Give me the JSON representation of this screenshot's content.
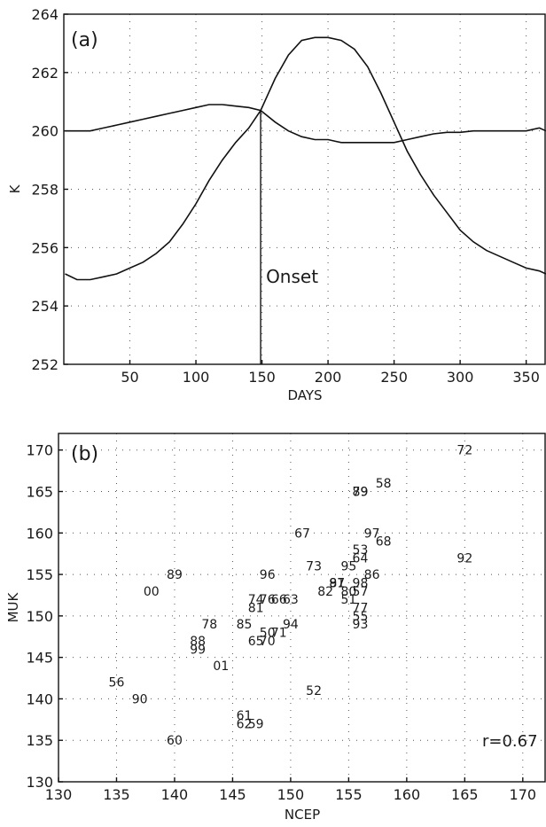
{
  "chart_data": [
    {
      "type": "line",
      "panel_label": "(a)",
      "xlabel": "DAYS",
      "ylabel": "K",
      "xlim": [
        0,
        365
      ],
      "ylim": [
        252,
        264
      ],
      "xticks": [
        50,
        100,
        150,
        200,
        250,
        300,
        350
      ],
      "yticks": [
        252,
        254,
        256,
        258,
        260,
        262,
        264
      ],
      "grid": true,
      "annotation": "Onset",
      "onset_day": 149,
      "series": [
        {
          "x": [
            1,
            10,
            20,
            30,
            40,
            50,
            60,
            70,
            80,
            90,
            100,
            110,
            120,
            130,
            140,
            149,
            155,
            160,
            170,
            180,
            190,
            200,
            210,
            220,
            230,
            240,
            250,
            260,
            270,
            280,
            290,
            300,
            310,
            320,
            330,
            340,
            350,
            360,
            365
          ],
          "values": [
            255.1,
            254.9,
            254.9,
            255.0,
            255.1,
            255.3,
            255.5,
            255.8,
            256.2,
            256.8,
            257.5,
            258.3,
            259.0,
            259.6,
            260.1,
            260.7,
            261.3,
            261.8,
            262.6,
            263.1,
            263.2,
            263.2,
            263.1,
            262.8,
            262.2,
            261.3,
            260.3,
            259.3,
            258.5,
            257.8,
            257.2,
            256.6,
            256.2,
            255.9,
            255.7,
            255.5,
            255.3,
            255.2,
            255.1
          ]
        },
        {
          "x": [
            1,
            10,
            20,
            30,
            40,
            50,
            60,
            70,
            80,
            90,
            100,
            110,
            120,
            130,
            140,
            149,
            160,
            170,
            180,
            190,
            200,
            210,
            220,
            230,
            240,
            250,
            260,
            270,
            280,
            290,
            300,
            310,
            320,
            330,
            340,
            350,
            360,
            365
          ],
          "values": [
            260.0,
            260.0,
            260.0,
            260.1,
            260.2,
            260.3,
            260.4,
            260.5,
            260.6,
            260.7,
            260.8,
            260.9,
            260.9,
            260.85,
            260.8,
            260.7,
            260.3,
            260.0,
            259.8,
            259.7,
            259.7,
            259.6,
            259.6,
            259.6,
            259.6,
            259.6,
            259.7,
            259.8,
            259.9,
            259.95,
            259.95,
            260.0,
            260.0,
            260.0,
            260.0,
            260.0,
            260.1,
            260.0
          ]
        }
      ]
    },
    {
      "type": "scatter",
      "panel_label": "(b)",
      "xlabel": "NCEP",
      "ylabel": "MUK",
      "xlim": [
        130,
        172
      ],
      "ylim": [
        130,
        172
      ],
      "xticks": [
        130,
        135,
        140,
        145,
        150,
        155,
        160,
        165,
        170
      ],
      "yticks": [
        130,
        135,
        140,
        145,
        150,
        155,
        160,
        165,
        170
      ],
      "grid": true,
      "annotation": "r=0.67",
      "points": [
        {
          "label": "72",
          "x": 165,
          "y": 170
        },
        {
          "label": "58",
          "x": 158,
          "y": 166
        },
        {
          "label": "79",
          "x": 156,
          "y": 165
        },
        {
          "label": "89",
          "x": 156,
          "y": 165
        },
        {
          "label": "97",
          "x": 157,
          "y": 160
        },
        {
          "label": "68",
          "x": 158,
          "y": 159
        },
        {
          "label": "67",
          "x": 151,
          "y": 160
        },
        {
          "label": "53",
          "x": 156,
          "y": 158
        },
        {
          "label": "64",
          "x": 156,
          "y": 157
        },
        {
          "label": "95",
          "x": 155,
          "y": 156
        },
        {
          "label": "92",
          "x": 165,
          "y": 157
        },
        {
          "label": "86",
          "x": 157,
          "y": 155
        },
        {
          "label": "89",
          "x": 140,
          "y": 155
        },
        {
          "label": "96",
          "x": 148,
          "y": 155
        },
        {
          "label": "73",
          "x": 152,
          "y": 156
        },
        {
          "label": "00",
          "x": 138,
          "y": 153
        },
        {
          "label": "87",
          "x": 154,
          "y": 154
        },
        {
          "label": "91",
          "x": 154,
          "y": 154
        },
        {
          "label": "98",
          "x": 156,
          "y": 154
        },
        {
          "label": "82",
          "x": 153,
          "y": 153
        },
        {
          "label": "80",
          "x": 155,
          "y": 153
        },
        {
          "label": "57",
          "x": 156,
          "y": 153
        },
        {
          "label": "51",
          "x": 155,
          "y": 152
        },
        {
          "label": "74",
          "x": 147,
          "y": 152
        },
        {
          "label": "76",
          "x": 148,
          "y": 152
        },
        {
          "label": "66",
          "x": 149,
          "y": 152
        },
        {
          "label": "63",
          "x": 150,
          "y": 152
        },
        {
          "label": "81",
          "x": 147,
          "y": 151
        },
        {
          "label": "77",
          "x": 156,
          "y": 151
        },
        {
          "label": "55",
          "x": 156,
          "y": 150
        },
        {
          "label": "93",
          "x": 156,
          "y": 149
        },
        {
          "label": "78",
          "x": 143,
          "y": 149
        },
        {
          "label": "85",
          "x": 146,
          "y": 149
        },
        {
          "label": "94",
          "x": 150,
          "y": 149
        },
        {
          "label": "88",
          "x": 142,
          "y": 147
        },
        {
          "label": "99",
          "x": 142,
          "y": 146
        },
        {
          "label": "50",
          "x": 148,
          "y": 148
        },
        {
          "label": "71",
          "x": 149,
          "y": 148
        },
        {
          "label": "65",
          "x": 147,
          "y": 147
        },
        {
          "label": "70",
          "x": 148,
          "y": 147
        },
        {
          "label": "01",
          "x": 144,
          "y": 144
        },
        {
          "label": "56",
          "x": 135,
          "y": 142
        },
        {
          "label": "90",
          "x": 137,
          "y": 140
        },
        {
          "label": "52",
          "x": 152,
          "y": 141
        },
        {
          "label": "61",
          "x": 146,
          "y": 138
        },
        {
          "label": "62",
          "x": 146,
          "y": 137
        },
        {
          "label": "59",
          "x": 147,
          "y": 137
        },
        {
          "label": "60",
          "x": 140,
          "y": 135
        }
      ]
    }
  ]
}
